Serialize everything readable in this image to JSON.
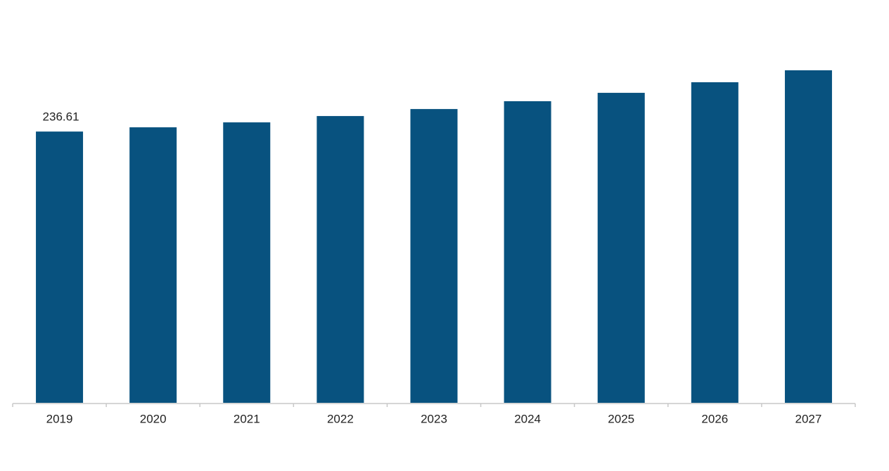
{
  "chart_data": {
    "type": "bar",
    "categories": [
      "2019",
      "2020",
      "2021",
      "2022",
      "2023",
      "2024",
      "2025",
      "2026",
      "2027"
    ],
    "values": [
      236.61,
      240.3,
      244.6,
      250.1,
      256.2,
      263.0,
      270.3,
      279.5,
      289.9
    ],
    "value_labels": [
      "236.61",
      null,
      null,
      null,
      null,
      null,
      null,
      null,
      null
    ],
    "color": "#08527f"
  }
}
